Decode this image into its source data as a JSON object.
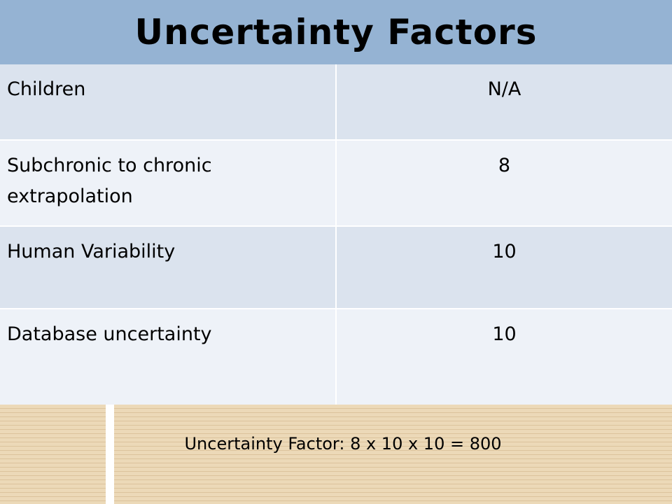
{
  "title": "Uncertainty Factors",
  "rows": [
    {
      "factor": "Children",
      "value": "N/A"
    },
    {
      "factor": "Subchronic to chronic extrapolation",
      "value": "8"
    },
    {
      "factor": "Human Variability",
      "value": "10"
    },
    {
      "factor": "Database uncertainty",
      "value": "10"
    }
  ],
  "summary": "Uncertainty Factor:  8 x 10 x 10 = 800",
  "colors": {
    "title_band": "#95b3d3",
    "row_dark": "#dbe3ee",
    "row_light": "#eef2f8",
    "bottom_band": "#ecd9b8"
  }
}
